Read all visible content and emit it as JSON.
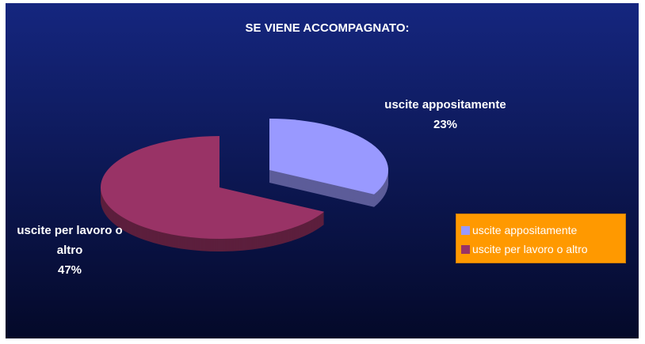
{
  "chart_data": {
    "type": "pie",
    "title": "SE VIENE ACCOMPAGNATO:",
    "categories": [
      "uscite appositamente",
      "uscite per lavoro o altro"
    ],
    "values": [
      23,
      47
    ],
    "value_labels": [
      "23%",
      "47%"
    ],
    "colors": [
      "#9999ff",
      "#993366"
    ],
    "legend": "right"
  }
}
